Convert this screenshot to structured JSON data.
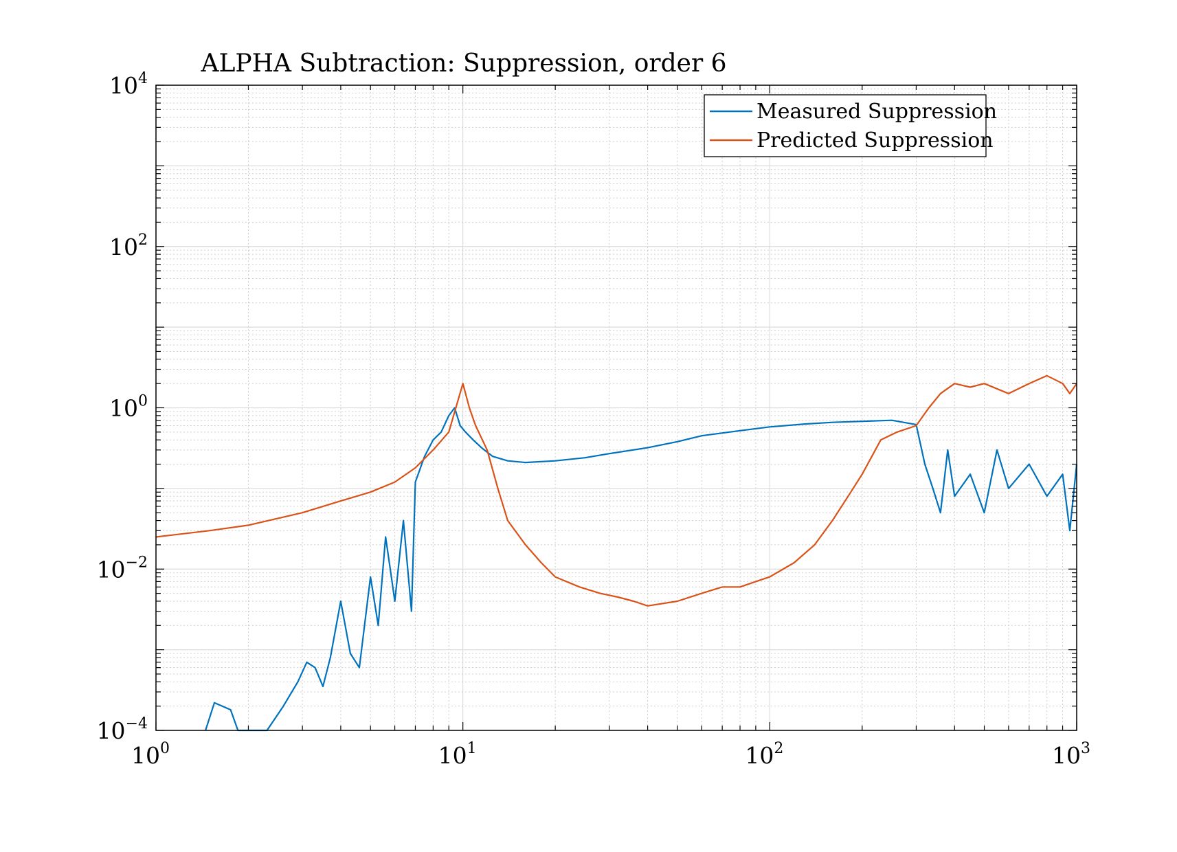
{
  "chart_data": {
    "type": "line",
    "title": "ALPHA Subtraction: Suppression, order 6",
    "xlabel": "",
    "ylabel": "",
    "xscale": "log",
    "yscale": "log",
    "xlim": [
      1,
      1000
    ],
    "ylim": [
      0.0001,
      10000
    ],
    "x_ticks": [
      {
        "base": "10",
        "exp": "0",
        "value": 1
      },
      {
        "base": "10",
        "exp": "1",
        "value": 10
      },
      {
        "base": "10",
        "exp": "2",
        "value": 100
      },
      {
        "base": "10",
        "exp": "3",
        "value": 1000
      }
    ],
    "y_ticks": [
      {
        "base": "10",
        "exp": "−4",
        "value": 0.0001
      },
      {
        "base": "10",
        "exp": "−2",
        "value": 0.01
      },
      {
        "base": "10",
        "exp": "0",
        "value": 1
      },
      {
        "base": "10",
        "exp": "2",
        "value": 100
      },
      {
        "base": "10",
        "exp": "4",
        "value": 10000
      }
    ],
    "grid": true,
    "legend_position": "top-right",
    "series": [
      {
        "name": "Measured Suppression",
        "color": "#0072BD",
        "x": [
          1.45,
          1.55,
          1.75,
          1.85,
          2.3,
          2.6,
          2.9,
          3.1,
          3.3,
          3.5,
          3.7,
          4.0,
          4.3,
          4.6,
          5.0,
          5.3,
          5.6,
          5.8,
          6.0,
          6.4,
          6.8,
          7.0,
          7.5,
          8.0,
          8.5,
          9.0,
          9.4,
          9.8,
          10.2,
          10.8,
          11.5,
          12.5,
          14,
          16,
          20,
          25,
          30,
          40,
          50,
          60,
          80,
          100,
          130,
          160,
          200,
          250,
          300,
          320,
          340,
          360,
          380,
          400,
          450,
          500,
          550,
          600,
          700,
          800,
          900,
          950,
          1000
        ],
        "y": [
          0.0001,
          0.00022,
          0.00018,
          0.0001,
          0.0001,
          0.0002,
          0.0004,
          0.0007,
          0.0006,
          0.00035,
          0.0008,
          0.004,
          0.0009,
          0.0006,
          0.008,
          0.002,
          0.025,
          0.01,
          0.004,
          0.04,
          0.003,
          0.12,
          0.25,
          0.4,
          0.5,
          0.8,
          1.0,
          0.6,
          0.5,
          0.4,
          0.32,
          0.25,
          0.22,
          0.21,
          0.22,
          0.24,
          0.27,
          0.32,
          0.38,
          0.45,
          0.52,
          0.58,
          0.63,
          0.66,
          0.68,
          0.7,
          0.62,
          0.2,
          0.1,
          0.05,
          0.3,
          0.08,
          0.15,
          0.05,
          0.3,
          0.1,
          0.2,
          0.08,
          0.15,
          0.03,
          0.2
        ]
      },
      {
        "name": "Predicted Suppression",
        "color": "#D95319",
        "x": [
          1.0,
          1.5,
          2.0,
          3.0,
          4.0,
          5.0,
          6.0,
          7.0,
          8.0,
          9.0,
          10.0,
          10.5,
          11,
          12,
          13,
          14,
          16,
          18,
          20,
          24,
          28,
          32,
          36,
          40,
          50,
          60,
          70,
          80,
          90,
          100,
          120,
          140,
          160,
          180,
          200,
          230,
          260,
          300,
          330,
          360,
          400,
          450,
          500,
          600,
          700,
          800,
          900,
          950,
          1000
        ],
        "y": [
          0.025,
          0.03,
          0.035,
          0.05,
          0.07,
          0.09,
          0.12,
          0.18,
          0.3,
          0.5,
          2.0,
          1.0,
          0.6,
          0.3,
          0.1,
          0.04,
          0.02,
          0.012,
          0.008,
          0.006,
          0.005,
          0.0045,
          0.004,
          0.0035,
          0.004,
          0.005,
          0.006,
          0.006,
          0.007,
          0.008,
          0.012,
          0.02,
          0.04,
          0.08,
          0.15,
          0.4,
          0.5,
          0.6,
          1.0,
          1.5,
          2.0,
          1.8,
          2.0,
          1.5,
          2.0,
          2.5,
          2.0,
          1.5,
          2.0
        ]
      }
    ]
  }
}
